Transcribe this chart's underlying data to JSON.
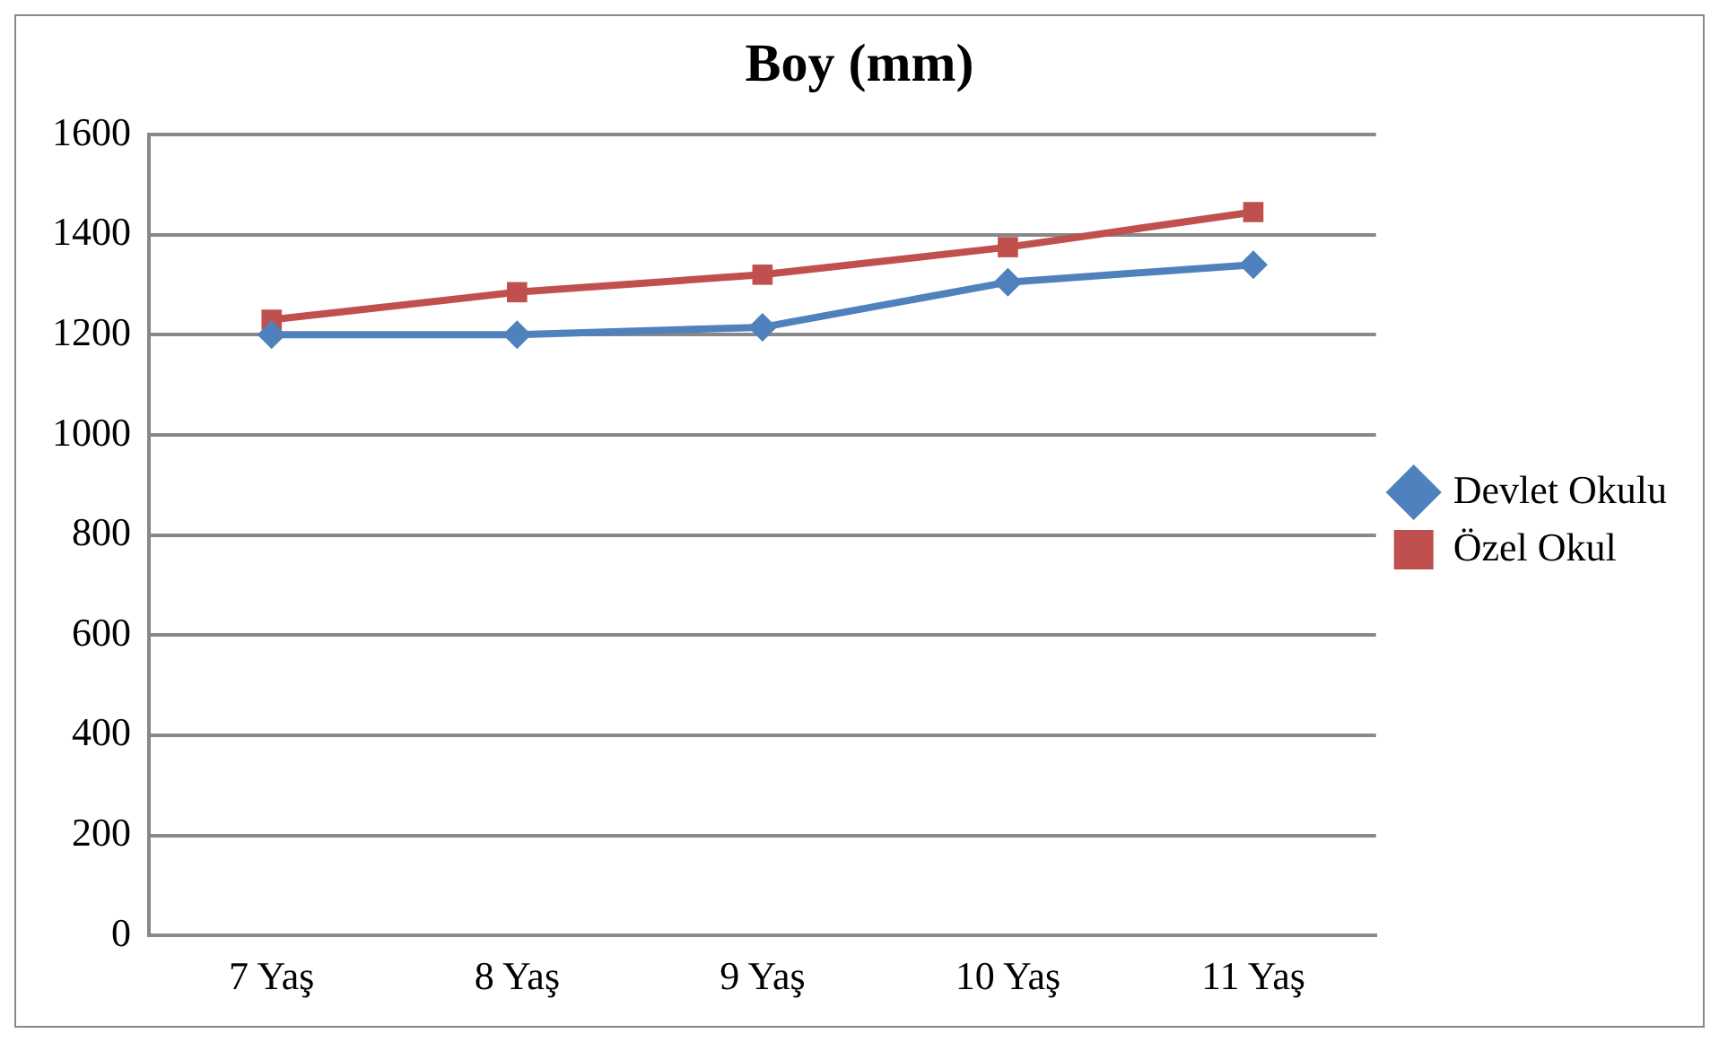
{
  "chart_data": {
    "type": "line",
    "title": "Boy (mm)",
    "categories": [
      "7 Yaş",
      "8 Yaş",
      "9 Yaş",
      "10 Yaş",
      "11 Yaş"
    ],
    "series": [
      {
        "name": "Devlet Okulu",
        "color": "#4f81bd",
        "values": [
          1200,
          1200,
          1215,
          1305,
          1340
        ],
        "marker": "diamond"
      },
      {
        "name": "Özel Okul",
        "color": "#c0504d",
        "values": [
          1230,
          1285,
          1320,
          1375,
          1445
        ],
        "marker": "square"
      }
    ],
    "ylim": [
      0,
      1600
    ],
    "yticks": [
      0,
      200,
      400,
      600,
      800,
      1000,
      1200,
      1400,
      1600
    ],
    "grid": "y",
    "legend": "right"
  }
}
